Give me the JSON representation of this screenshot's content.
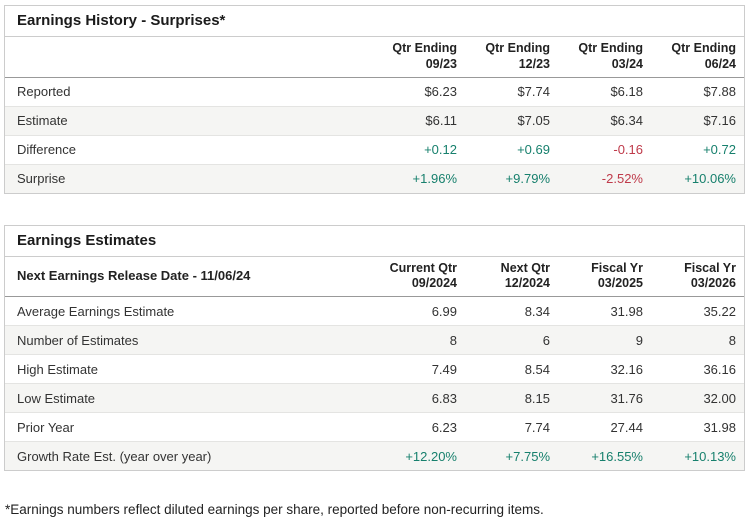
{
  "colors": {
    "positive": "#17806d",
    "negative": "#bf3a4a",
    "stripe": "#f5f5f3",
    "border": "#cccccc"
  },
  "surprises": {
    "title": "Earnings History - Surprises*",
    "columns": [
      {
        "line1": "Qtr Ending",
        "line2": "09/23"
      },
      {
        "line1": "Qtr Ending",
        "line2": "12/23"
      },
      {
        "line1": "Qtr Ending",
        "line2": "03/24"
      },
      {
        "line1": "Qtr Ending",
        "line2": "06/24"
      }
    ],
    "rows": [
      {
        "label": "Reported",
        "values": [
          "$6.23",
          "$7.74",
          "$6.18",
          "$7.88"
        ]
      },
      {
        "label": "Estimate",
        "values": [
          "$6.11",
          "$7.05",
          "$6.34",
          "$7.16"
        ]
      },
      {
        "label": "Difference",
        "values": [
          "+0.12",
          "+0.69",
          "-0.16",
          "+0.72"
        ]
      },
      {
        "label": "Surprise",
        "values": [
          "+1.96%",
          "+9.79%",
          "-2.52%",
          "+10.06%"
        ]
      }
    ]
  },
  "estimates": {
    "title": "Earnings Estimates",
    "header_left": "Next Earnings Release Date - 11/06/24",
    "columns": [
      {
        "line1": "Current Qtr",
        "line2": "09/2024"
      },
      {
        "line1": "Next Qtr",
        "line2": "12/2024"
      },
      {
        "line1": "Fiscal Yr",
        "line2": "03/2025"
      },
      {
        "line1": "Fiscal Yr",
        "line2": "03/2026"
      }
    ],
    "rows": [
      {
        "label": "Average Earnings Estimate",
        "values": [
          "6.99",
          "8.34",
          "31.98",
          "35.22"
        ]
      },
      {
        "label": "Number of Estimates",
        "values": [
          "8",
          "6",
          "9",
          "8"
        ]
      },
      {
        "label": "High Estimate",
        "values": [
          "7.49",
          "8.54",
          "32.16",
          "36.16"
        ]
      },
      {
        "label": "Low Estimate",
        "values": [
          "6.83",
          "8.15",
          "31.76",
          "32.00"
        ]
      },
      {
        "label": "Prior Year",
        "values": [
          "6.23",
          "7.74",
          "27.44",
          "31.98"
        ]
      },
      {
        "label": "Growth Rate Est. (year over year)",
        "values": [
          "+12.20%",
          "+7.75%",
          "+16.55%",
          "+10.13%"
        ]
      }
    ]
  },
  "footnote": "*Earnings numbers reflect diluted earnings per share, reported before non-recurring items."
}
